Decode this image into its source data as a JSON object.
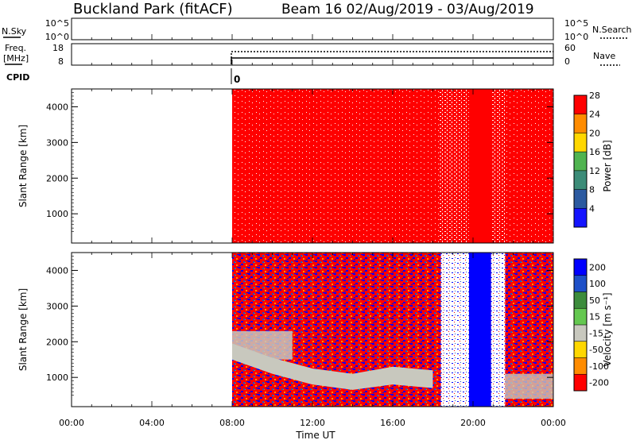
{
  "header": {
    "site": "Buckland Park (fitACF)",
    "beam_dates": "Beam 16 02/Aug/2019 - 03/Aug/2019"
  },
  "top_panel": {
    "nsky_label": "N.Sky",
    "nsky_ticks": [
      "10^5",
      "10^0"
    ],
    "nsearch_label": "N.Search",
    "nsearch_ticks": [
      "10^5",
      "10^0"
    ],
    "freq_label_1": "Freq.",
    "freq_label_2": "[MHz]",
    "freq_ticks": [
      "18",
      "8"
    ],
    "nave_label": "Nave",
    "nave_ticks": [
      "60",
      "0"
    ],
    "cpid_label": "CPID",
    "cpid_value": "0"
  },
  "chart_data": [
    {
      "type": "heatmap",
      "name": "power",
      "ylabel": "Slant Range [km]",
      "xlabel": "Time UT",
      "x_ticks": [
        "00:00",
        "04:00",
        "08:00",
        "12:00",
        "16:00",
        "20:00",
        "00:00"
      ],
      "x_range_hours": [
        0,
        24
      ],
      "ylim": [
        180,
        4500
      ],
      "y_ticks": [
        1000,
        2000,
        3000,
        4000
      ],
      "data_start_hour": 8.0,
      "colorbar": {
        "label": "Power [dB]",
        "ticks": [
          "4",
          "8",
          "12",
          "16",
          "20",
          "24",
          "28"
        ],
        "colors": [
          "#1414ff",
          "#2c5aa0",
          "#3c8c78",
          "#50b450",
          "#ffd700",
          "#ff8c00",
          "#ff0000"
        ]
      },
      "description_bands": [
        {
          "from_hour": 8.0,
          "to_hour": 15.2,
          "value_db": 28
        },
        {
          "from_hour": 15.2,
          "to_hour": 18.5,
          "value_db": 28
        },
        {
          "from_hour": 18.5,
          "to_hour": 19.7,
          "value_db": 28
        },
        {
          "from_hour": 19.7,
          "to_hour": 20.9,
          "value_db": 28
        },
        {
          "from_hour": 20.9,
          "to_hour": 24.0,
          "value_db": 28
        }
      ]
    },
    {
      "type": "heatmap",
      "name": "velocity",
      "ylabel": "Slant Range [km]",
      "xlabel": "Time UT",
      "x_ticks": [
        "00:00",
        "04:00",
        "08:00",
        "12:00",
        "16:00",
        "20:00",
        "00:00"
      ],
      "x_range_hours": [
        0,
        24
      ],
      "ylim": [
        180,
        4500
      ],
      "y_ticks": [
        1000,
        2000,
        3000,
        4000
      ],
      "data_start_hour": 8.0,
      "colorbar": {
        "label": "Velocity [m s⁻¹]",
        "ticks": [
          "200",
          "100",
          "50",
          "15",
          "-15",
          "-50",
          "-100",
          "-200"
        ],
        "colors": [
          "#0000ff",
          "#1e50c8",
          "#3c8c3c",
          "#64c850",
          "#c8c8be",
          "#ffd700",
          "#ff8c00",
          "#ff0000"
        ]
      },
      "features": [
        {
          "kind": "ground-scatter band",
          "from_hour": 8.0,
          "to_hour": 18.0,
          "range_km_start": 1900,
          "range_km_end": 600,
          "value": "0"
        },
        {
          "kind": "strong positive",
          "from_hour": 19.8,
          "to_hour": 20.9,
          "range_km": [
            180,
            4500
          ],
          "value": 200
        }
      ]
    }
  ]
}
